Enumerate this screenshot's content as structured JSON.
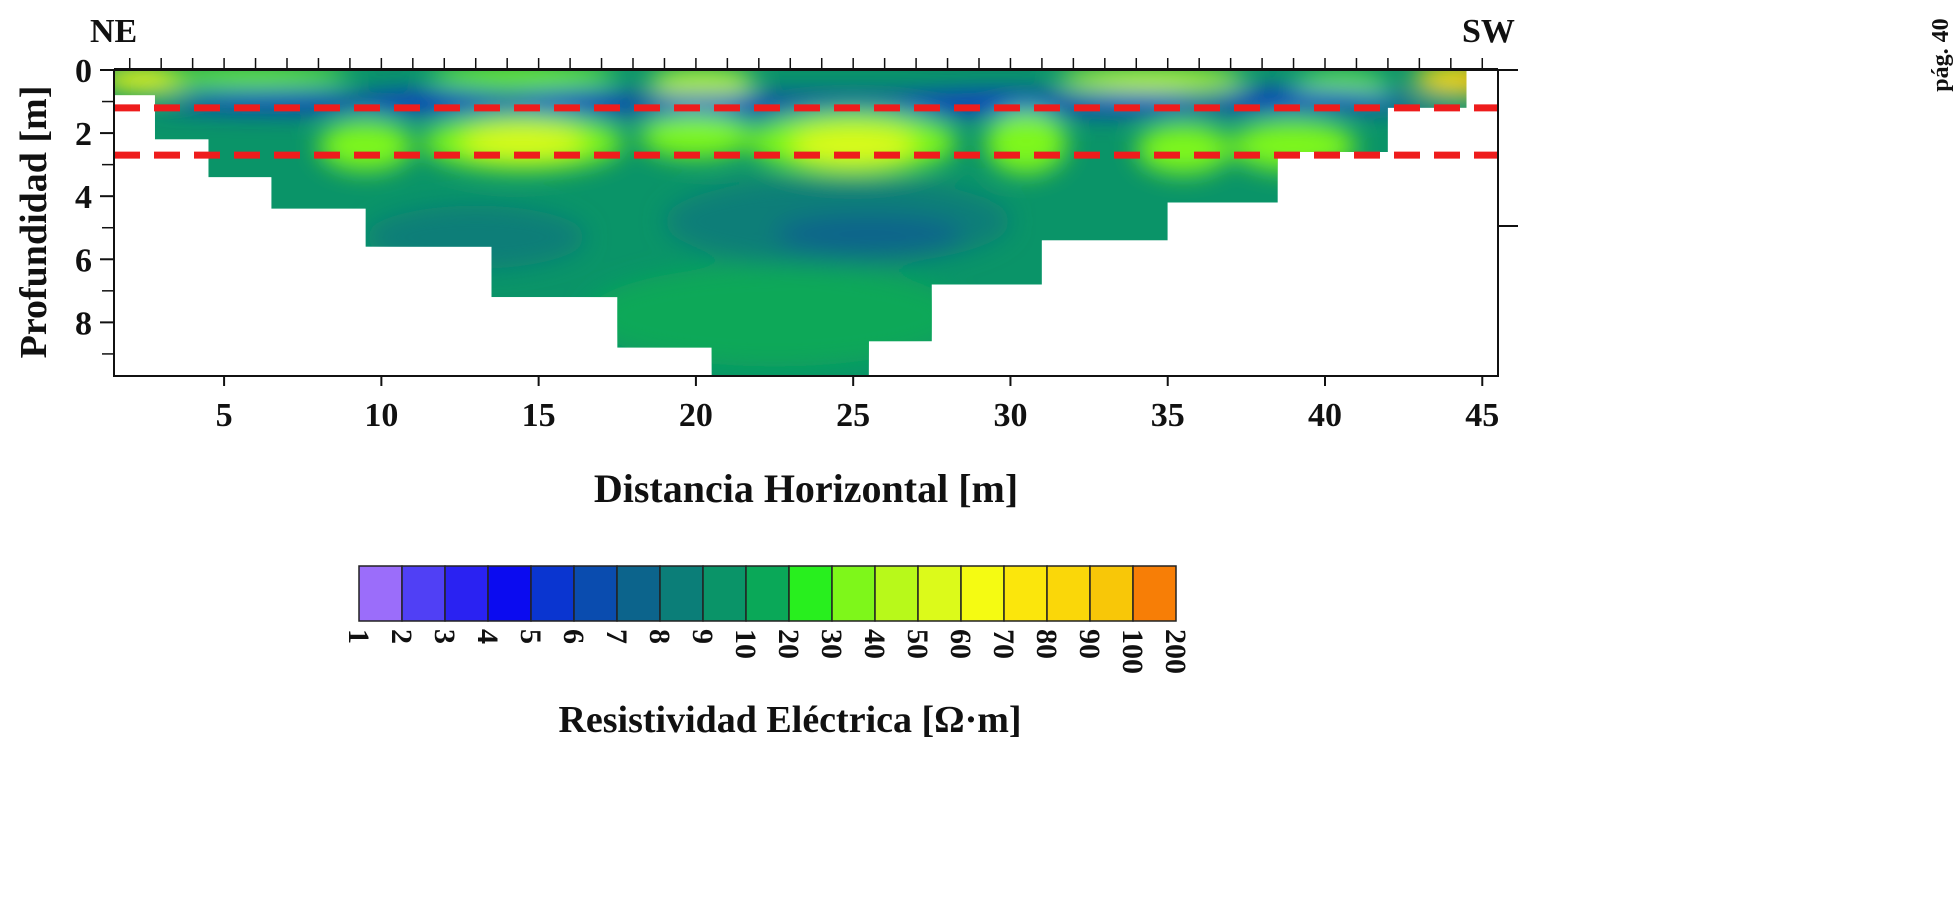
{
  "chart_data": {
    "type": "heatmap",
    "title": "",
    "xlabel": "Distancia Horizontal [m]",
    "ylabel": "Profundidad [m]",
    "xlim": [
      1.5,
      45.5
    ],
    "ylim": [
      0,
      9.7
    ],
    "y_inverted": true,
    "x_ticks": [
      5,
      10,
      15,
      20,
      25,
      30,
      35,
      40,
      45
    ],
    "y_ticks": [
      0,
      2,
      4,
      6,
      8
    ],
    "corner_labels": {
      "left": "NE",
      "right": "SW"
    },
    "side_note": "pág. 40",
    "section_profile": {
      "description_points_x_depth": [
        [
          1.5,
          0
        ],
        [
          2.8,
          0.8
        ],
        [
          4.5,
          2.2
        ],
        [
          6.5,
          3.4
        ],
        [
          9.5,
          4.4
        ],
        [
          13.5,
          5.6
        ],
        [
          17.5,
          7.2
        ],
        [
          20.5,
          8.8
        ],
        [
          21.8,
          9.7
        ],
        [
          25.5,
          9.7
        ],
        [
          27.5,
          8.6
        ],
        [
          31,
          6.8
        ],
        [
          35,
          5.4
        ],
        [
          38.5,
          4.2
        ],
        [
          42,
          2.6
        ],
        [
          44.5,
          1.2
        ],
        [
          45.5,
          0
        ]
      ]
    },
    "interface_lines": [
      {
        "depth": 1.2,
        "style": "red-dashed"
      },
      {
        "depth": 2.7,
        "style": "red-dashed"
      }
    ],
    "colorbar": {
      "label": "Resistividad Eléctrica [Ω·m]",
      "tick_labels": [
        "1",
        "2",
        "3",
        "4",
        "5",
        "6",
        "7",
        "8",
        "9",
        "10",
        "20",
        "30",
        "40",
        "50",
        "60",
        "70",
        "80",
        "90",
        "100",
        "200"
      ],
      "colors": [
        "#9b6dfa",
        "#5040f5",
        "#2a22f2",
        "#0b0bf0",
        "#0a35d0",
        "#0a4caf",
        "#0c648c",
        "#0b7e78",
        "#0a9468",
        "#0aa858",
        "#28ef1e",
        "#7ef71a",
        "#b8f91a",
        "#dcfa1a",
        "#f5fb12",
        "#fbe60c",
        "#fad709",
        "#f8c708",
        "#f77e06"
      ]
    },
    "anomalies": [
      {
        "x": 2.5,
        "depth": 0.3,
        "rx": 1.5,
        "ry": 0.4,
        "class": 14
      },
      {
        "x": 44.3,
        "depth": 0.3,
        "rx": 1.5,
        "ry": 0.5,
        "class": 16
      },
      {
        "x": 45.1,
        "depth": 0.2,
        "rx": 0.5,
        "ry": 0.3,
        "class": 18
      },
      {
        "x": 6,
        "depth": 0.2,
        "rx": 3,
        "ry": 0.3,
        "class": 11
      },
      {
        "x": 14.5,
        "depth": 0.2,
        "rx": 3,
        "ry": 0.35,
        "class": 11
      },
      {
        "x": 20.2,
        "depth": 0.4,
        "rx": 1.7,
        "ry": 0.45,
        "class": 12
      },
      {
        "x": 34.5,
        "depth": 0.3,
        "rx": 3,
        "ry": 0.4,
        "class": 12
      },
      {
        "x": 40.5,
        "depth": 0.6,
        "rx": 1.5,
        "ry": 0.5,
        "class": 11
      },
      {
        "x": 23.5,
        "depth": 1.1,
        "rx": 21,
        "ry": 0.35,
        "class": 5
      },
      {
        "x": 6.5,
        "depth": 1.0,
        "rx": 3,
        "ry": 0.3,
        "class": 4
      },
      {
        "x": 11.5,
        "depth": 1.0,
        "rx": 2.5,
        "ry": 0.3,
        "class": 4
      },
      {
        "x": 16,
        "depth": 1.0,
        "rx": 2,
        "ry": 0.3,
        "class": 4
      },
      {
        "x": 20.5,
        "depth": 1.1,
        "rx": 2,
        "ry": 0.3,
        "class": 4
      },
      {
        "x": 29.5,
        "depth": 1.0,
        "rx": 3,
        "ry": 0.3,
        "class": 4
      },
      {
        "x": 34,
        "depth": 1.0,
        "rx": 2,
        "ry": 0.3,
        "class": 4
      },
      {
        "x": 39.5,
        "depth": 0.9,
        "rx": 3,
        "ry": 0.3,
        "class": 4
      },
      {
        "x": 9.5,
        "depth": 2.4,
        "rx": 1.5,
        "ry": 0.8,
        "class": 11
      },
      {
        "x": 14.5,
        "depth": 2.3,
        "rx": 3.2,
        "ry": 0.9,
        "class": 11
      },
      {
        "x": 14.5,
        "depth": 2.3,
        "rx": 2,
        "ry": 0.5,
        "class": 13
      },
      {
        "x": 20,
        "depth": 2.1,
        "rx": 1.8,
        "ry": 0.7,
        "class": 11
      },
      {
        "x": 25,
        "depth": 2.3,
        "rx": 3.3,
        "ry": 1.0,
        "class": 11
      },
      {
        "x": 25,
        "depth": 2.4,
        "rx": 2,
        "ry": 0.6,
        "class": 13
      },
      {
        "x": 30.5,
        "depth": 2.3,
        "rx": 1.3,
        "ry": 1.0,
        "class": 11
      },
      {
        "x": 35.5,
        "depth": 2.5,
        "rx": 1.5,
        "ry": 0.8,
        "class": 11
      },
      {
        "x": 39,
        "depth": 2.4,
        "rx": 2,
        "ry": 0.8,
        "class": 11
      },
      {
        "x": 24.5,
        "depth": 4.8,
        "rx": 5.5,
        "ry": 1.4,
        "class": 7
      },
      {
        "x": 25.5,
        "depth": 5.2,
        "rx": 3,
        "ry": 0.6,
        "class": 6
      },
      {
        "x": 13,
        "depth": 5.3,
        "rx": 3.5,
        "ry": 1.0,
        "class": 7
      },
      {
        "x": 22.5,
        "depth": 7.8,
        "rx": 6,
        "ry": 1.6,
        "class": 9
      }
    ]
  }
}
